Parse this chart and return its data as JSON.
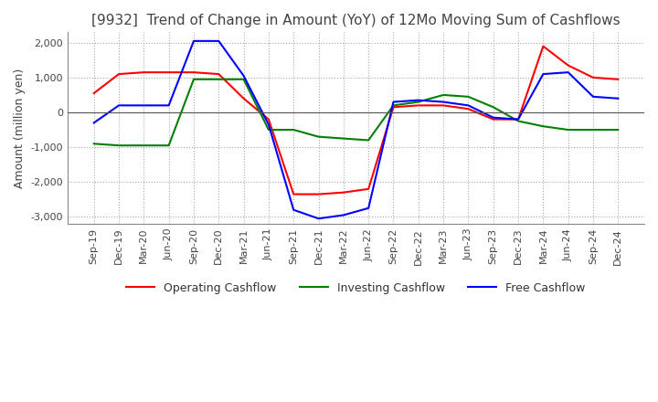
{
  "title": "[9932]  Trend of Change in Amount (YoY) of 12Mo Moving Sum of Cashflows",
  "ylabel": "Amount (million yen)",
  "ylim": [
    -3200,
    2300
  ],
  "yticks": [
    -3000,
    -2000,
    -1000,
    0,
    1000,
    2000
  ],
  "x_labels": [
    "Sep-19",
    "Dec-19",
    "Mar-20",
    "Jun-20",
    "Sep-20",
    "Dec-20",
    "Mar-21",
    "Jun-21",
    "Sep-21",
    "Dec-21",
    "Mar-22",
    "Jun-22",
    "Sep-22",
    "Dec-22",
    "Mar-23",
    "Jun-23",
    "Sep-23",
    "Dec-23",
    "Mar-24",
    "Jun-24",
    "Sep-24",
    "Dec-24"
  ],
  "operating": [
    550,
    1100,
    1150,
    1150,
    1150,
    1100,
    400,
    -200,
    -2350,
    -2350,
    -2300,
    -2200,
    150,
    200,
    200,
    100,
    -200,
    -200,
    1900,
    1350,
    1000,
    950
  ],
  "investing": [
    -900,
    -950,
    -950,
    -950,
    950,
    950,
    950,
    -500,
    -500,
    -700,
    -750,
    -800,
    200,
    300,
    500,
    450,
    150,
    -250,
    -400,
    -500,
    -500,
    -500
  ],
  "free": [
    -300,
    200,
    200,
    200,
    2050,
    2050,
    1050,
    -350,
    -2800,
    -3050,
    -2950,
    -2750,
    300,
    350,
    300,
    200,
    -150,
    -200,
    1100,
    1150,
    450,
    400
  ],
  "operating_color": "#ff0000",
  "investing_color": "#008000",
  "free_color": "#0000ff",
  "background_color": "#ffffff",
  "grid_color": "#aaaaaa",
  "title_fontsize": 11,
  "label_fontsize": 9,
  "tick_fontsize": 8,
  "legend_fontsize": 9
}
